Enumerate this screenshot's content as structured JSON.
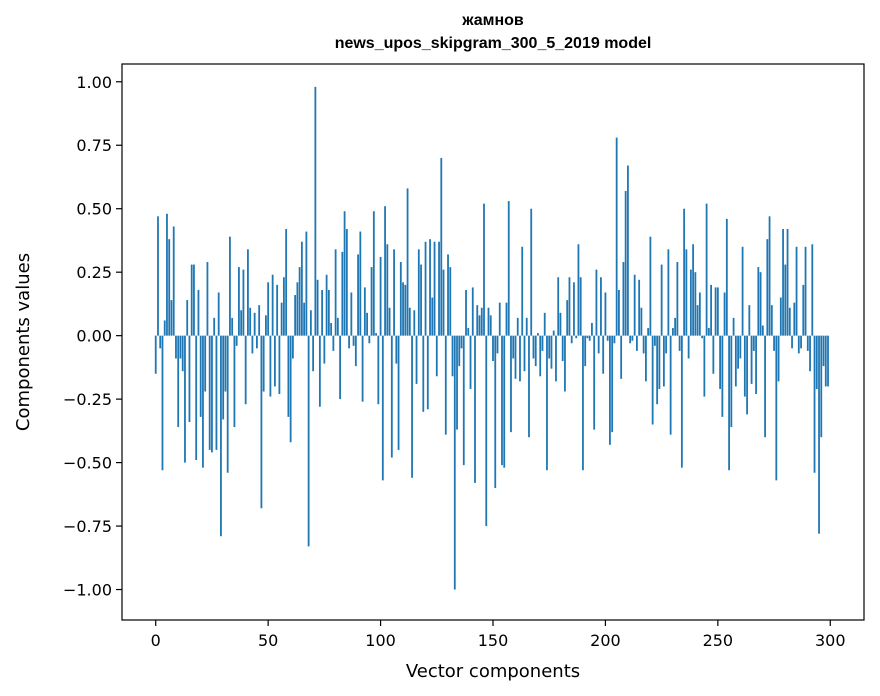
{
  "chart_data": {
    "type": "bar",
    "title": "жамнов",
    "subtitle": "news_upos_skipgram_300_5_2019 model",
    "xlabel": "Vector components",
    "ylabel": "Components values",
    "xlim": [
      -15,
      315
    ],
    "ylim": [
      -1.12,
      1.07
    ],
    "xticks": [
      0,
      50,
      100,
      150,
      200,
      250,
      300
    ],
    "xtick_labels": [
      "0",
      "50",
      "100",
      "150",
      "200",
      "250",
      "300"
    ],
    "yticks": [
      1.0,
      0.75,
      0.5,
      0.25,
      0.0,
      -0.25,
      -0.5,
      -0.75,
      -1.0
    ],
    "ytick_labels": [
      "1.00",
      "0.75",
      "0.50",
      "0.25",
      "0.00",
      "−0.25",
      "−0.50",
      "−0.75",
      "−1.00"
    ],
    "bar_color": "#1f77b4",
    "grid": false,
    "values": [
      -0.15,
      0.47,
      -0.05,
      -0.53,
      0.06,
      0.48,
      0.38,
      0.14,
      0.43,
      -0.09,
      -0.36,
      -0.09,
      -0.14,
      -0.5,
      0.14,
      -0.34,
      0.28,
      0.28,
      -0.49,
      0.18,
      -0.32,
      -0.52,
      -0.22,
      0.29,
      -0.45,
      -0.46,
      0.07,
      -0.45,
      0.17,
      -0.79,
      -0.33,
      -0.22,
      -0.54,
      0.39,
      0.07,
      -0.36,
      -0.04,
      0.27,
      0.1,
      0.26,
      -0.27,
      0.34,
      0.11,
      -0.07,
      0.09,
      -0.05,
      0.12,
      -0.68,
      -0.22,
      0.08,
      0.21,
      -0.24,
      0.24,
      -0.2,
      0.2,
      -0.23,
      0.13,
      0.23,
      0.42,
      -0.32,
      -0.42,
      -0.09,
      0.16,
      0.21,
      0.27,
      0.37,
      0.13,
      0.41,
      -0.83,
      0.1,
      -0.14,
      0.98,
      0.22,
      -0.28,
      0.18,
      -0.11,
      0.24,
      0.18,
      0.05,
      -0.06,
      0.34,
      0.07,
      -0.25,
      0.33,
      0.49,
      0.42,
      -0.05,
      0.17,
      -0.04,
      -0.12,
      0.32,
      0.41,
      -0.26,
      0.19,
      0.09,
      -0.03,
      0.27,
      0.49,
      0.01,
      -0.27,
      0.31,
      -0.57,
      0.51,
      0.36,
      0.11,
      -0.48,
      0.34,
      -0.11,
      -0.45,
      0.29,
      0.21,
      0.2,
      0.58,
      0.11,
      -0.56,
      0.1,
      -0.19,
      0.34,
      0.28,
      -0.3,
      0.37,
      -0.29,
      0.38,
      0.15,
      0.37,
      -0.16,
      0.37,
      0.7,
      0.26,
      -0.39,
      0.32,
      0.27,
      -0.16,
      -1.0,
      -0.37,
      -0.12,
      -0.05,
      -0.51,
      0.18,
      0.03,
      -0.21,
      0.19,
      -0.58,
      0.12,
      0.08,
      0.11,
      0.52,
      -0.75,
      0.11,
      0.08,
      -0.1,
      -0.6,
      -0.07,
      0.13,
      -0.51,
      -0.52,
      0.13,
      0.53,
      -0.38,
      -0.09,
      -0.17,
      0.07,
      -0.18,
      0.35,
      -0.14,
      0.07,
      -0.4,
      0.5,
      -0.09,
      -0.12,
      0.01,
      -0.16,
      -0.06,
      0.09,
      -0.53,
      -0.09,
      -0.13,
      0.02,
      -0.18,
      0.23,
      0.09,
      -0.1,
      -0.22,
      0.14,
      0.23,
      -0.03,
      0.21,
      -0.01,
      0.36,
      0.23,
      -0.53,
      -0.12,
      -0.01,
      -0.02,
      0.05,
      -0.37,
      0.26,
      -0.07,
      0.23,
      -0.15,
      0.17,
      -0.02,
      -0.43,
      -0.38,
      -0.03,
      0.78,
      0.18,
      -0.17,
      0.29,
      0.57,
      0.67,
      -0.03,
      -0.02,
      0.24,
      -0.06,
      0.22,
      0.11,
      -0.07,
      -0.18,
      0.03,
      0.39,
      -0.35,
      -0.04,
      -0.27,
      -0.21,
      0.28,
      -0.2,
      -0.07,
      0.34,
      -0.39,
      0.03,
      0.07,
      0.29,
      -0.06,
      -0.52,
      0.5,
      0.34,
      -0.09,
      0.26,
      0.36,
      0.25,
      0.12,
      0.17,
      -0.01,
      -0.24,
      0.52,
      0.03,
      0.2,
      -0.15,
      0.19,
      0.19,
      -0.21,
      -0.32,
      0.17,
      0.46,
      -0.53,
      -0.36,
      0.07,
      -0.2,
      -0.13,
      -0.09,
      0.35,
      -0.24,
      -0.31,
      0.12,
      -0.19,
      -0.06,
      -0.23,
      0.27,
      0.25,
      0.04,
      -0.4,
      0.38,
      0.47,
      0.12,
      -0.06,
      -0.57,
      -0.18,
      0.15,
      0.42,
      0.28,
      0.42,
      0.11,
      -0.05,
      0.13,
      0.35,
      -0.07,
      -0.05,
      0.2,
      0.35,
      -0.06,
      -0.14,
      0.36,
      -0.54,
      -0.21,
      -0.78,
      -0.4,
      -0.12,
      -0.2,
      -0.2
    ]
  }
}
